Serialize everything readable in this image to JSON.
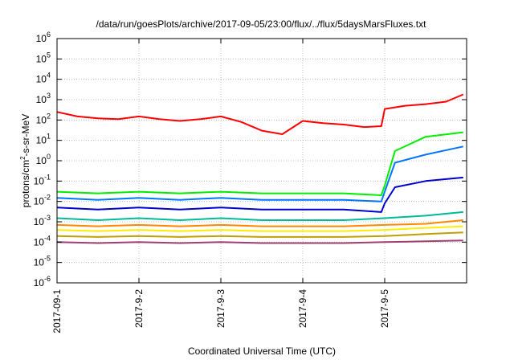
{
  "chart_data": {
    "type": "line",
    "title": "/data/run/goesPlots/archive/2017-09-05/23:00/flux/../flux/5daysMarsFluxes.txt",
    "xlabel": "Coordinated Universal Time (UTC)",
    "ylabel": {
      "base": "protons/cm",
      "sup": "2",
      "rest": "-s-sr-MeV"
    },
    "y_scale": "log",
    "ylim_exp": [
      -6,
      6
    ],
    "xlim": [
      "2017-09-01",
      "2017-09-06"
    ],
    "grid": true,
    "x_ticks": [
      {
        "label": "2017-09-1",
        "date": "2017-09-01"
      },
      {
        "label": "2017-9-2",
        "date": "2017-09-02"
      },
      {
        "label": "2017-9-3",
        "date": "2017-09-03"
      },
      {
        "label": "2017-9-4",
        "date": "2017-09-04"
      },
      {
        "label": "2017-9-5",
        "date": "2017-09-05"
      }
    ],
    "y_ticks": [
      {
        "base": "10",
        "exp": "-6"
      },
      {
        "base": "10",
        "exp": "-5"
      },
      {
        "base": "10",
        "exp": "-4"
      },
      {
        "base": "10",
        "exp": "-3"
      },
      {
        "base": "10",
        "exp": "-2"
      },
      {
        "base": "10",
        "exp": "-1"
      },
      {
        "base": "10",
        "exp": "0"
      },
      {
        "base": "10",
        "exp": "1"
      },
      {
        "base": "10",
        "exp": "2"
      },
      {
        "base": "10",
        "exp": "3"
      },
      {
        "base": "10",
        "exp": "4"
      },
      {
        "base": "10",
        "exp": "5"
      },
      {
        "base": "10",
        "exp": "6"
      }
    ],
    "series": [
      {
        "color": "#ff0000",
        "x": [
          "2017-09-01 00:00",
          "2017-09-01 06:00",
          "2017-09-01 12:00",
          "2017-09-01 18:00",
          "2017-09-02 00:00",
          "2017-09-02 06:00",
          "2017-09-02 12:00",
          "2017-09-02 18:00",
          "2017-09-03 00:00",
          "2017-09-03 06:00",
          "2017-09-03 12:00",
          "2017-09-03 18:00",
          "2017-09-04 00:00",
          "2017-09-04 06:00",
          "2017-09-04 12:00",
          "2017-09-04 18:00",
          "2017-09-04 23:00",
          "2017-09-05 00:00",
          "2017-09-05 06:00",
          "2017-09-05 12:00",
          "2017-09-05 18:00",
          "2017-09-05 23:00"
        ],
        "y": [
          250,
          150,
          120,
          110,
          150,
          110,
          90,
          110,
          150,
          80,
          30,
          20,
          90,
          70,
          60,
          45,
          50,
          350,
          500,
          600,
          800,
          1800
        ]
      },
      {
        "color": "#00ee00",
        "x": [
          "2017-09-01 00:00",
          "2017-09-01 12:00",
          "2017-09-02 00:00",
          "2017-09-02 12:00",
          "2017-09-03 00:00",
          "2017-09-03 12:00",
          "2017-09-04 00:00",
          "2017-09-04 12:00",
          "2017-09-04 23:00",
          "2017-09-05 00:00",
          "2017-09-05 03:00",
          "2017-09-05 12:00",
          "2017-09-05 23:00"
        ],
        "y": [
          0.03,
          0.025,
          0.03,
          0.025,
          0.03,
          0.025,
          0.025,
          0.025,
          0.02,
          0.06,
          3,
          15,
          25
        ]
      },
      {
        "color": "#0077ff",
        "x": [
          "2017-09-01 00:00",
          "2017-09-01 12:00",
          "2017-09-02 00:00",
          "2017-09-02 12:00",
          "2017-09-03 00:00",
          "2017-09-03 12:00",
          "2017-09-04 00:00",
          "2017-09-04 12:00",
          "2017-09-04 23:00",
          "2017-09-05 00:00",
          "2017-09-05 03:00",
          "2017-09-05 12:00",
          "2017-09-05 23:00"
        ],
        "y": [
          0.015,
          0.012,
          0.015,
          0.012,
          0.015,
          0.012,
          0.012,
          0.012,
          0.01,
          0.03,
          0.8,
          2,
          5
        ]
      },
      {
        "color": "#0000cc",
        "x": [
          "2017-09-01 00:00",
          "2017-09-01 12:00",
          "2017-09-02 00:00",
          "2017-09-02 12:00",
          "2017-09-03 00:00",
          "2017-09-03 12:00",
          "2017-09-04 00:00",
          "2017-09-04 12:00",
          "2017-09-04 23:00",
          "2017-09-05 00:00",
          "2017-09-05 03:00",
          "2017-09-05 12:00",
          "2017-09-05 23:00"
        ],
        "y": [
          0.005,
          0.004,
          0.005,
          0.004,
          0.005,
          0.004,
          0.004,
          0.004,
          0.003,
          0.008,
          0.05,
          0.1,
          0.15
        ]
      },
      {
        "color": "#00bb99",
        "x": [
          "2017-09-01 00:00",
          "2017-09-01 12:00",
          "2017-09-02 00:00",
          "2017-09-02 12:00",
          "2017-09-03 00:00",
          "2017-09-03 12:00",
          "2017-09-04 00:00",
          "2017-09-04 12:00",
          "2017-09-05 00:00",
          "2017-09-05 12:00",
          "2017-09-05 23:00"
        ],
        "y": [
          0.0015,
          0.0012,
          0.0015,
          0.0012,
          0.0015,
          0.0012,
          0.0012,
          0.0012,
          0.0015,
          0.002,
          0.003
        ]
      },
      {
        "color": "#ff8800",
        "x": [
          "2017-09-01 00:00",
          "2017-09-01 12:00",
          "2017-09-02 00:00",
          "2017-09-02 12:00",
          "2017-09-03 00:00",
          "2017-09-03 12:00",
          "2017-09-04 00:00",
          "2017-09-04 12:00",
          "2017-09-05 00:00",
          "2017-09-05 12:00",
          "2017-09-05 23:00"
        ],
        "y": [
          0.0007,
          0.0006,
          0.0007,
          0.0006,
          0.0007,
          0.0006,
          0.0006,
          0.0006,
          0.0007,
          0.0008,
          0.0012
        ]
      },
      {
        "color": "#ffee00",
        "x": [
          "2017-09-01 00:00",
          "2017-09-01 12:00",
          "2017-09-02 00:00",
          "2017-09-02 12:00",
          "2017-09-03 00:00",
          "2017-09-03 12:00",
          "2017-09-04 00:00",
          "2017-09-04 12:00",
          "2017-09-05 00:00",
          "2017-09-05 12:00",
          "2017-09-05 23:00"
        ],
        "y": [
          0.0004,
          0.00035,
          0.0004,
          0.00035,
          0.0004,
          0.00035,
          0.00035,
          0.00035,
          0.0004,
          0.0005,
          0.0006
        ]
      },
      {
        "color": "#c0a000",
        "x": [
          "2017-09-01 00:00",
          "2017-09-01 12:00",
          "2017-09-02 00:00",
          "2017-09-02 12:00",
          "2017-09-03 00:00",
          "2017-09-03 12:00",
          "2017-09-04 00:00",
          "2017-09-04 12:00",
          "2017-09-05 00:00",
          "2017-09-05 12:00",
          "2017-09-05 23:00"
        ],
        "y": [
          0.0002,
          0.00018,
          0.0002,
          0.00018,
          0.0002,
          0.00018,
          0.00018,
          0.00018,
          0.0002,
          0.00025,
          0.0003
        ]
      },
      {
        "color": "#a04070",
        "x": [
          "2017-09-01 00:00",
          "2017-09-01 12:00",
          "2017-09-02 00:00",
          "2017-09-02 12:00",
          "2017-09-03 00:00",
          "2017-09-03 12:00",
          "2017-09-04 00:00",
          "2017-09-04 12:00",
          "2017-09-05 00:00",
          "2017-09-05 12:00",
          "2017-09-05 23:00"
        ],
        "y": [
          0.0001,
          9e-05,
          0.0001,
          9e-05,
          0.0001,
          9e-05,
          9e-05,
          9e-05,
          0.0001,
          0.00011,
          0.00012
        ]
      }
    ]
  }
}
